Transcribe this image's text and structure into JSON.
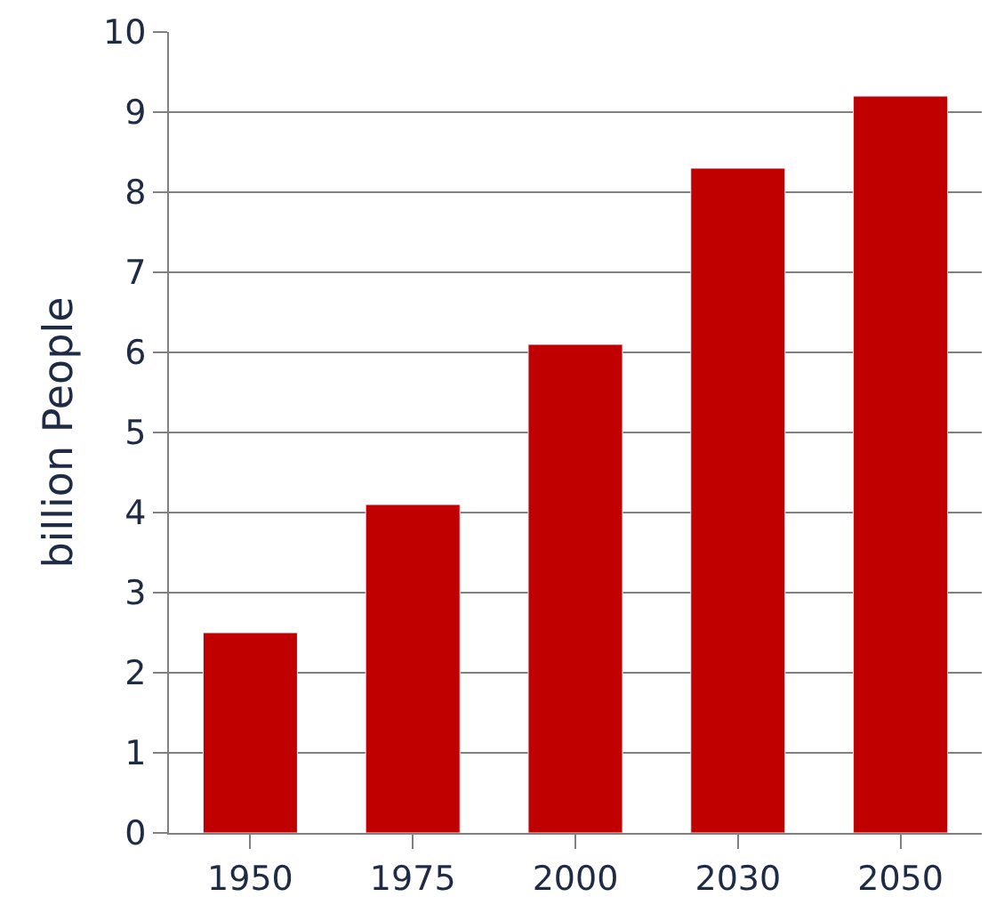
{
  "chart_data": {
    "type": "bar",
    "ylabel": "billion People",
    "categories": [
      "1950",
      "1975",
      "2000",
      "2030",
      "2050"
    ],
    "values": [
      2.5,
      4.1,
      6.1,
      8.3,
      9.2
    ],
    "color": "#c00000",
    "ylim": [
      0,
      10
    ],
    "yticks": [
      0,
      1,
      2,
      3,
      4,
      5,
      6,
      7,
      8,
      9,
      10
    ],
    "grid": "y"
  }
}
